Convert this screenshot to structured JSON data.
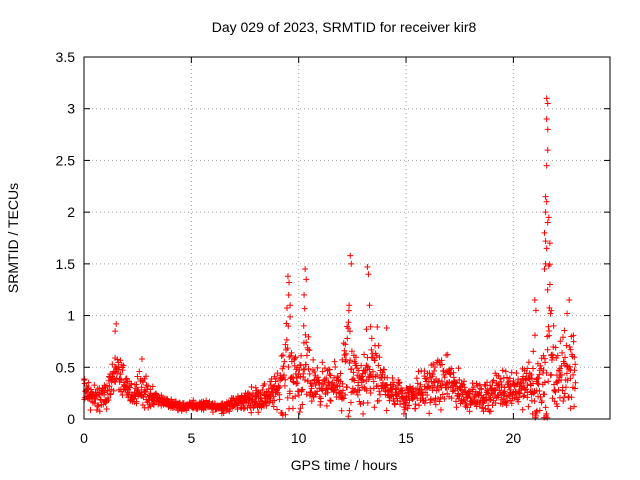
{
  "chart_data": {
    "type": "scatter",
    "title": "Day 029 of 2023, SRMTID for receiver kir8",
    "xlabel": "GPS time / hours",
    "ylabel": "SRMTID / TECUs",
    "xlim": [
      0,
      24.5
    ],
    "ylim": [
      0,
      3.5
    ],
    "xticks": [
      0,
      5,
      10,
      15,
      20
    ],
    "xtick_labels": [
      "0",
      "5",
      "10",
      "15",
      "20"
    ],
    "yticks": [
      0,
      0.5,
      1,
      1.5,
      2,
      2.5,
      3,
      3.5
    ],
    "ytick_labels": [
      "0",
      "0.5",
      "1",
      "1.5",
      "2",
      "2.5",
      "3",
      "3.5"
    ],
    "grid": true,
    "marker": "+",
    "series": [
      {
        "name": "SRMTID",
        "color": "#ff0000",
        "envelope_x": [
          0.0,
          0.2,
          0.5,
          1.0,
          1.3,
          1.5,
          1.8,
          2.2,
          2.7,
          3.0,
          3.5,
          4.0,
          4.5,
          5.0,
          5.5,
          6.0,
          6.5,
          7.0,
          7.5,
          8.0,
          8.5,
          9.0,
          9.3,
          9.5,
          9.7,
          10.0,
          10.3,
          10.6,
          11.0,
          11.5,
          12.0,
          12.3,
          12.5,
          12.8,
          13.2,
          13.5,
          13.8,
          14.2,
          14.6,
          15.0,
          15.5,
          16.0,
          16.5,
          17.0,
          17.5,
          18.0,
          18.5,
          19.0,
          19.5,
          20.0,
          20.4,
          20.8,
          21.0,
          21.2,
          21.4,
          21.6,
          21.8,
          22.0,
          22.3,
          22.6,
          22.9
        ],
        "envelope_center": [
          0.3,
          0.25,
          0.2,
          0.22,
          0.35,
          0.45,
          0.35,
          0.22,
          0.3,
          0.22,
          0.18,
          0.15,
          0.13,
          0.13,
          0.13,
          0.12,
          0.12,
          0.15,
          0.18,
          0.2,
          0.22,
          0.28,
          0.45,
          0.65,
          0.45,
          0.38,
          0.5,
          0.35,
          0.35,
          0.3,
          0.35,
          0.55,
          0.4,
          0.32,
          0.4,
          0.5,
          0.35,
          0.3,
          0.25,
          0.22,
          0.28,
          0.3,
          0.35,
          0.35,
          0.28,
          0.22,
          0.2,
          0.25,
          0.3,
          0.3,
          0.3,
          0.35,
          0.3,
          0.25,
          0.35,
          0.7,
          0.45,
          0.4,
          0.45,
          0.45,
          0.5
        ],
        "envelope_spread": [
          0.1,
          0.1,
          0.1,
          0.1,
          0.15,
          0.25,
          0.15,
          0.1,
          0.15,
          0.1,
          0.06,
          0.05,
          0.05,
          0.04,
          0.04,
          0.04,
          0.05,
          0.06,
          0.08,
          0.1,
          0.12,
          0.15,
          0.35,
          0.5,
          0.3,
          0.25,
          0.45,
          0.2,
          0.18,
          0.15,
          0.2,
          0.6,
          0.25,
          0.18,
          0.35,
          0.5,
          0.2,
          0.18,
          0.15,
          0.12,
          0.18,
          0.18,
          0.2,
          0.2,
          0.15,
          0.12,
          0.1,
          0.15,
          0.15,
          0.15,
          0.15,
          0.2,
          0.45,
          0.25,
          0.45,
          1.2,
          0.45,
          0.3,
          0.35,
          0.3,
          0.35
        ],
        "peaks": [
          {
            "x": 1.5,
            "y": 0.92
          },
          {
            "x": 1.45,
            "y": 0.85
          },
          {
            "x": 2.7,
            "y": 0.58
          },
          {
            "x": 9.5,
            "y": 1.38
          },
          {
            "x": 9.55,
            "y": 1.32
          },
          {
            "x": 9.6,
            "y": 1.1
          },
          {
            "x": 10.3,
            "y": 1.45
          },
          {
            "x": 10.35,
            "y": 1.35
          },
          {
            "x": 10.25,
            "y": 1.2
          },
          {
            "x": 12.4,
            "y": 1.58
          },
          {
            "x": 12.45,
            "y": 1.5
          },
          {
            "x": 12.35,
            "y": 1.1
          },
          {
            "x": 13.2,
            "y": 1.47
          },
          {
            "x": 13.25,
            "y": 1.4
          },
          {
            "x": 13.3,
            "y": 1.1
          },
          {
            "x": 14.1,
            "y": 0.88
          },
          {
            "x": 21.0,
            "y": 1.15
          },
          {
            "x": 21.05,
            "y": 1.05
          },
          {
            "x": 21.55,
            "y": 3.1
          },
          {
            "x": 21.6,
            "y": 3.05
          },
          {
            "x": 21.55,
            "y": 2.9
          },
          {
            "x": 21.6,
            "y": 2.8
          },
          {
            "x": 21.6,
            "y": 2.6
          },
          {
            "x": 21.55,
            "y": 2.45
          },
          {
            "x": 21.5,
            "y": 2.15
          },
          {
            "x": 21.55,
            "y": 2.1
          },
          {
            "x": 21.5,
            "y": 2.0
          },
          {
            "x": 21.65,
            "y": 1.95
          },
          {
            "x": 21.6,
            "y": 1.9
          },
          {
            "x": 21.45,
            "y": 1.8
          },
          {
            "x": 21.5,
            "y": 1.72
          },
          {
            "x": 21.55,
            "y": 1.65
          },
          {
            "x": 21.7,
            "y": 1.7
          },
          {
            "x": 21.5,
            "y": 1.5
          },
          {
            "x": 21.45,
            "y": 1.45
          },
          {
            "x": 21.65,
            "y": 1.48
          },
          {
            "x": 21.7,
            "y": 1.3
          },
          {
            "x": 22.6,
            "y": 1.15
          },
          {
            "x": 22.5,
            "y": 1.02
          },
          {
            "x": 20.9,
            "y": 0.05
          },
          {
            "x": 21.05,
            "y": 0.03
          },
          {
            "x": 21.1,
            "y": 0.08
          },
          {
            "x": 14.9,
            "y": 0.05
          },
          {
            "x": 13.0,
            "y": 0.05
          },
          {
            "x": 12.0,
            "y": 0.08
          }
        ]
      }
    ]
  }
}
